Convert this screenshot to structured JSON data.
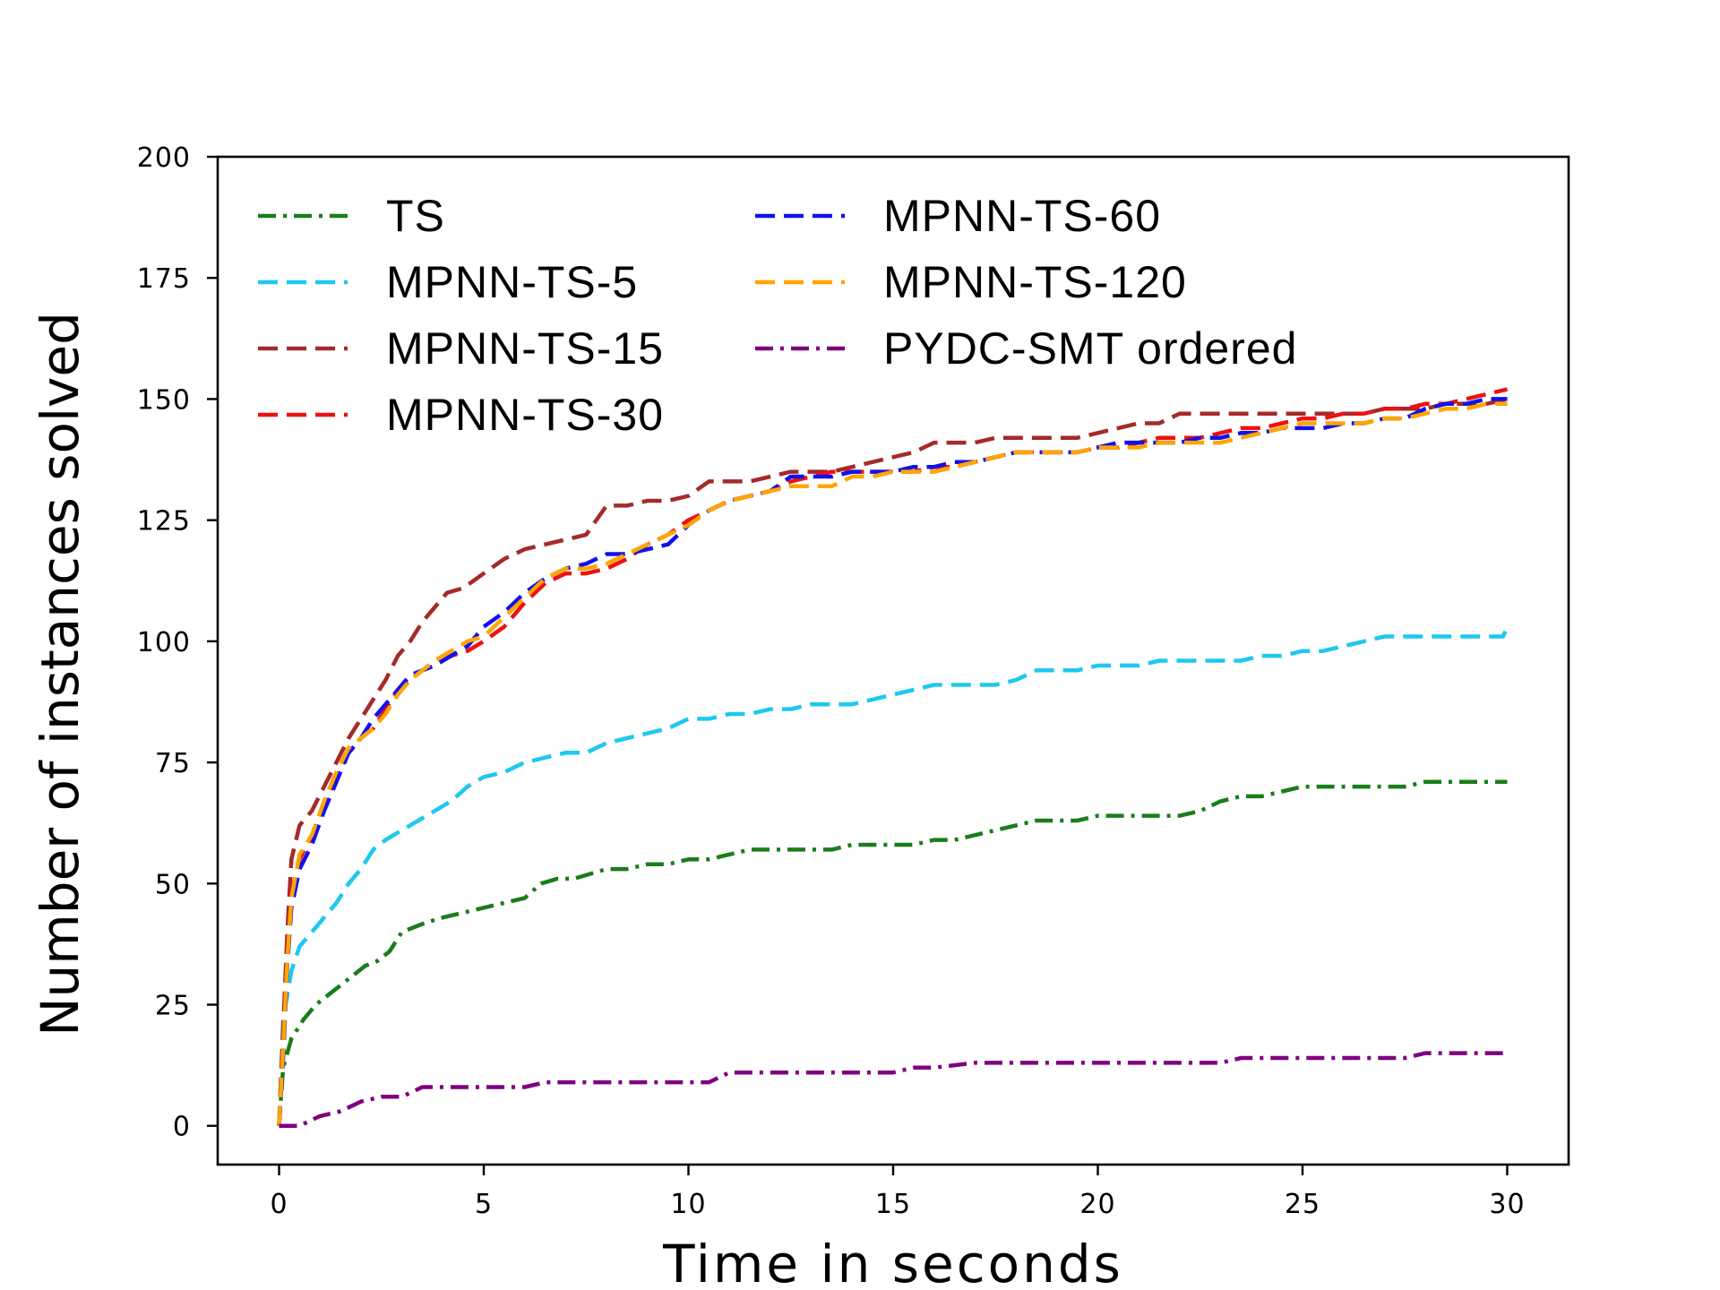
{
  "chart_data": {
    "type": "line",
    "title": "",
    "xlabel": "Time in seconds",
    "ylabel": "Number of instances solved",
    "xlim": [
      -1.5,
      31.5
    ],
    "ylim": [
      -8,
      200
    ],
    "xticks": [
      0,
      5,
      10,
      15,
      20,
      25,
      30
    ],
    "yticks": [
      0,
      25,
      50,
      75,
      100,
      125,
      150,
      175,
      200
    ],
    "xtick_labels": [
      "0",
      "5",
      "10",
      "15",
      "20",
      "25",
      "30"
    ],
    "ytick_labels": [
      "0",
      "25",
      "50",
      "75",
      "100",
      "125",
      "150",
      "175",
      "200"
    ],
    "grid": false,
    "legend_position": "top-left, two columns",
    "series": [
      {
        "name": "TS",
        "color": "#1a7d1a",
        "dash": "dashdot",
        "x": [
          0,
          0.1,
          0.3,
          0.6,
          0.9,
          1.2,
          1.5,
          1.8,
          2.1,
          2.4,
          2.7,
          3.0,
          3.3,
          3.6,
          4.0,
          4.5,
          5.0,
          5.5,
          6.0,
          6.4,
          6.8,
          7.2,
          7.6,
          8.0,
          8.5,
          9.0,
          9.5,
          10.0,
          10.5,
          11.0,
          11.5,
          12.0,
          12.5,
          13.0,
          13.5,
          14.0,
          14.5,
          15.0,
          15.5,
          16.0,
          16.5,
          17.0,
          17.5,
          18.0,
          18.5,
          19.0,
          19.5,
          20.0,
          20.5,
          21.0,
          21.5,
          22.0,
          22.5,
          23.0,
          23.5,
          24.0,
          24.5,
          25.0,
          25.5,
          26.0,
          26.5,
          27.0,
          27.5,
          28.0,
          28.5,
          29.0,
          29.5,
          30.0
        ],
        "y": [
          0,
          12,
          18,
          22,
          25,
          27,
          29,
          31,
          33,
          34,
          36,
          40,
          41,
          42,
          43,
          44,
          45,
          46,
          47,
          50,
          51,
          51,
          52,
          53,
          53,
          54,
          54,
          55,
          55,
          56,
          57,
          57,
          57,
          57,
          57,
          58,
          58,
          58,
          58,
          59,
          59,
          60,
          61,
          62,
          63,
          63,
          63,
          64,
          64,
          64,
          64,
          64,
          65,
          67,
          68,
          68,
          69,
          70,
          70,
          70,
          70,
          70,
          70,
          71,
          71,
          71,
          71,
          71
        ]
      },
      {
        "name": "MPNN-TS-5",
        "color": "#1ec8f0",
        "dash": "dashed",
        "x": [
          0,
          0.1,
          0.3,
          0.5,
          0.8,
          1.1,
          1.4,
          1.7,
          2.0,
          2.3,
          2.6,
          3.0,
          3.4,
          3.8,
          4.2,
          4.6,
          5.0,
          5.5,
          6.0,
          6.5,
          7.0,
          7.5,
          8.0,
          8.5,
          9.0,
          9.5,
          10.0,
          10.5,
          11.0,
          11.5,
          12.0,
          12.5,
          13.0,
          13.5,
          14.0,
          14.5,
          15.0,
          15.5,
          16.0,
          16.5,
          17.0,
          17.5,
          18.0,
          18.5,
          19.0,
          19.5,
          20.0,
          20.5,
          21.0,
          21.5,
          22.0,
          22.5,
          23.0,
          23.5,
          24.0,
          24.5,
          25.0,
          25.5,
          26.0,
          26.5,
          27.0,
          27.5,
          28.0,
          28.5,
          29.0,
          29.5,
          29.9,
          30.0
        ],
        "y": [
          0,
          22,
          32,
          37,
          40,
          43,
          46,
          50,
          53,
          57,
          59,
          61,
          63,
          65,
          67,
          70,
          72,
          73,
          75,
          76,
          77,
          77,
          79,
          80,
          81,
          82,
          84,
          84,
          85,
          85,
          86,
          86,
          87,
          87,
          87,
          88,
          89,
          90,
          91,
          91,
          91,
          91,
          92,
          94,
          94,
          94,
          95,
          95,
          95,
          96,
          96,
          96,
          96,
          96,
          97,
          97,
          98,
          98,
          99,
          100,
          101,
          101,
          101,
          101,
          101,
          101,
          101,
          103
        ]
      },
      {
        "name": "MPNN-TS-15",
        "color": "#a52a2a",
        "dash": "dashed",
        "x": [
          0,
          0.1,
          0.2,
          0.3,
          0.5,
          0.8,
          1.1,
          1.4,
          1.7,
          2.0,
          2.3,
          2.6,
          2.9,
          3.2,
          3.5,
          3.8,
          4.1,
          4.5,
          5.0,
          5.5,
          6.0,
          6.5,
          7.0,
          7.5,
          8.0,
          8.5,
          9.0,
          9.5,
          10.0,
          10.5,
          11.0,
          11.5,
          12.0,
          12.5,
          13.0,
          13.5,
          14.0,
          14.5,
          15.0,
          15.5,
          16.0,
          16.5,
          17.0,
          17.5,
          18.0,
          18.5,
          19.0,
          19.5,
          20.0,
          20.5,
          21.0,
          21.5,
          22.0,
          22.5,
          23.0,
          23.5,
          24.0,
          24.5,
          25.0,
          25.5,
          26.0,
          26.5,
          27.0,
          27.5,
          28.0,
          28.5,
          29.0,
          29.5,
          30.0
        ],
        "y": [
          0,
          20,
          40,
          55,
          62,
          65,
          70,
          75,
          80,
          84,
          88,
          92,
          97,
          100,
          104,
          107,
          110,
          111,
          114,
          117,
          119,
          120,
          121,
          122,
          128,
          128,
          129,
          129,
          130,
          133,
          133,
          133,
          134,
          135,
          135,
          135,
          136,
          137,
          138,
          139,
          141,
          141,
          141,
          142,
          142,
          142,
          142,
          142,
          143,
          144,
          145,
          145,
          147,
          147,
          147,
          147,
          147,
          147,
          147,
          147,
          147,
          147,
          148,
          148,
          148,
          149,
          149,
          149,
          150
        ]
      },
      {
        "name": "MPNN-TS-30",
        "color": "#ee1111",
        "dash": "dashed",
        "x": [
          0,
          0.1,
          0.2,
          0.3,
          0.5,
          0.8,
          1.1,
          1.4,
          1.7,
          2.0,
          2.3,
          2.6,
          2.9,
          3.2,
          3.5,
          3.8,
          4.2,
          4.6,
          5.0,
          5.5,
          6.0,
          6.5,
          7.0,
          7.5,
          8.0,
          8.5,
          9.0,
          9.5,
          10.0,
          10.5,
          11.0,
          11.5,
          12.0,
          12.5,
          13.0,
          13.5,
          14.0,
          14.5,
          15.0,
          15.5,
          16.0,
          16.5,
          17.0,
          17.5,
          18.0,
          18.5,
          19.0,
          19.5,
          20.0,
          20.5,
          21.0,
          21.5,
          22.0,
          22.5,
          23.0,
          23.5,
          24.0,
          24.5,
          25.0,
          25.5,
          26.0,
          26.5,
          27.0,
          27.5,
          28.0,
          28.5,
          29.0,
          29.5,
          30.0
        ],
        "y": [
          0,
          15,
          35,
          48,
          55,
          60,
          66,
          72,
          77,
          80,
          82,
          86,
          90,
          92,
          94,
          95,
          97,
          98,
          100,
          103,
          108,
          112,
          114,
          114,
          115,
          117,
          120,
          122,
          125,
          127,
          129,
          130,
          131,
          133,
          134,
          135,
          135,
          135,
          135,
          135,
          136,
          136,
          137,
          138,
          139,
          139,
          139,
          139,
          140,
          140,
          141,
          142,
          142,
          142,
          143,
          144,
          144,
          145,
          146,
          146,
          147,
          147,
          148,
          148,
          149,
          149,
          150,
          151,
          152
        ]
      },
      {
        "name": "MPNN-TS-60",
        "color": "#1111ee",
        "dash": "dashed",
        "x": [
          0,
          0.1,
          0.2,
          0.3,
          0.5,
          0.8,
          1.1,
          1.4,
          1.7,
          2.0,
          2.3,
          2.6,
          2.9,
          3.2,
          3.5,
          3.8,
          4.2,
          4.6,
          5.0,
          5.5,
          6.0,
          6.5,
          7.0,
          7.5,
          8.0,
          8.5,
          9.0,
          9.5,
          10.0,
          10.5,
          11.0,
          11.5,
          12.0,
          12.5,
          13.0,
          13.5,
          14.0,
          14.5,
          15.0,
          15.5,
          16.0,
          16.5,
          17.0,
          17.5,
          18.0,
          18.5,
          19.0,
          19.5,
          20.0,
          20.5,
          21.0,
          21.5,
          22.0,
          22.5,
          23.0,
          23.5,
          24.0,
          24.5,
          25.0,
          25.5,
          26.0,
          26.5,
          27.0,
          27.5,
          28.0,
          28.5,
          29.0,
          29.5,
          30.0
        ],
        "y": [
          0,
          14,
          33,
          45,
          53,
          58,
          65,
          71,
          77,
          80,
          84,
          87,
          90,
          93,
          94,
          95,
          97,
          99,
          103,
          106,
          110,
          113,
          115,
          116,
          118,
          118,
          119,
          120,
          124,
          127,
          129,
          130,
          131,
          134,
          134,
          134,
          135,
          135,
          135,
          136,
          136,
          137,
          137,
          138,
          139,
          139,
          139,
          139,
          140,
          141,
          141,
          141,
          141,
          142,
          142,
          143,
          143,
          144,
          144,
          144,
          145,
          145,
          146,
          146,
          148,
          149,
          149,
          150,
          150
        ]
      },
      {
        "name": "MPNN-TS-120",
        "color": "#ffa500",
        "dash": "dashed",
        "x": [
          0,
          0.1,
          0.2,
          0.3,
          0.5,
          0.8,
          1.1,
          1.4,
          1.7,
          2.0,
          2.3,
          2.6,
          2.9,
          3.2,
          3.5,
          3.8,
          4.2,
          4.6,
          5.0,
          5.5,
          6.0,
          6.5,
          7.0,
          7.5,
          8.0,
          8.5,
          9.0,
          9.5,
          10.0,
          10.5,
          11.0,
          11.5,
          12.0,
          12.5,
          13.0,
          13.5,
          14.0,
          14.5,
          15.0,
          15.5,
          16.0,
          16.5,
          17.0,
          17.5,
          18.0,
          18.5,
          19.0,
          19.5,
          20.0,
          20.5,
          21.0,
          21.5,
          22.0,
          22.5,
          23.0,
          23.5,
          24.0,
          24.5,
          25.0,
          25.5,
          26.0,
          26.5,
          27.0,
          27.5,
          28.0,
          28.5,
          29.0,
          29.5,
          30.0
        ],
        "y": [
          0,
          16,
          34,
          47,
          56,
          60,
          67,
          73,
          78,
          80,
          82,
          85,
          89,
          92,
          94,
          96,
          98,
          100,
          101,
          105,
          109,
          113,
          115,
          115,
          116,
          118,
          120,
          122,
          124,
          127,
          129,
          130,
          131,
          132,
          132,
          132,
          134,
          134,
          135,
          135,
          135,
          136,
          137,
          138,
          139,
          139,
          139,
          139,
          140,
          140,
          140,
          141,
          141,
          141,
          141,
          142,
          143,
          144,
          145,
          145,
          145,
          145,
          146,
          146,
          147,
          148,
          148,
          149,
          149
        ]
      },
      {
        "name": "PYDC-SMT ordered",
        "color": "#800080",
        "dash": "dashdot",
        "x": [
          0,
          0.5,
          1.0,
          1.5,
          2.0,
          2.5,
          3.0,
          3.5,
          4.0,
          5.0,
          6.0,
          6.5,
          7.0,
          8.0,
          9.0,
          10.0,
          10.5,
          11.0,
          12.0,
          13.0,
          14.0,
          15.0,
          15.5,
          16.0,
          17.0,
          18.0,
          19.0,
          20.0,
          21.0,
          22.0,
          23.0,
          23.5,
          24.0,
          25.0,
          26.0,
          27.0,
          27.5,
          28.0,
          29.0,
          30.0
        ],
        "y": [
          0,
          0,
          2,
          3,
          5,
          6,
          6,
          8,
          8,
          8,
          8,
          9,
          9,
          9,
          9,
          9,
          9,
          11,
          11,
          11,
          11,
          11,
          12,
          12,
          13,
          13,
          13,
          13,
          13,
          13,
          13,
          14,
          14,
          14,
          14,
          14,
          14,
          15,
          15,
          15
        ]
      }
    ]
  }
}
